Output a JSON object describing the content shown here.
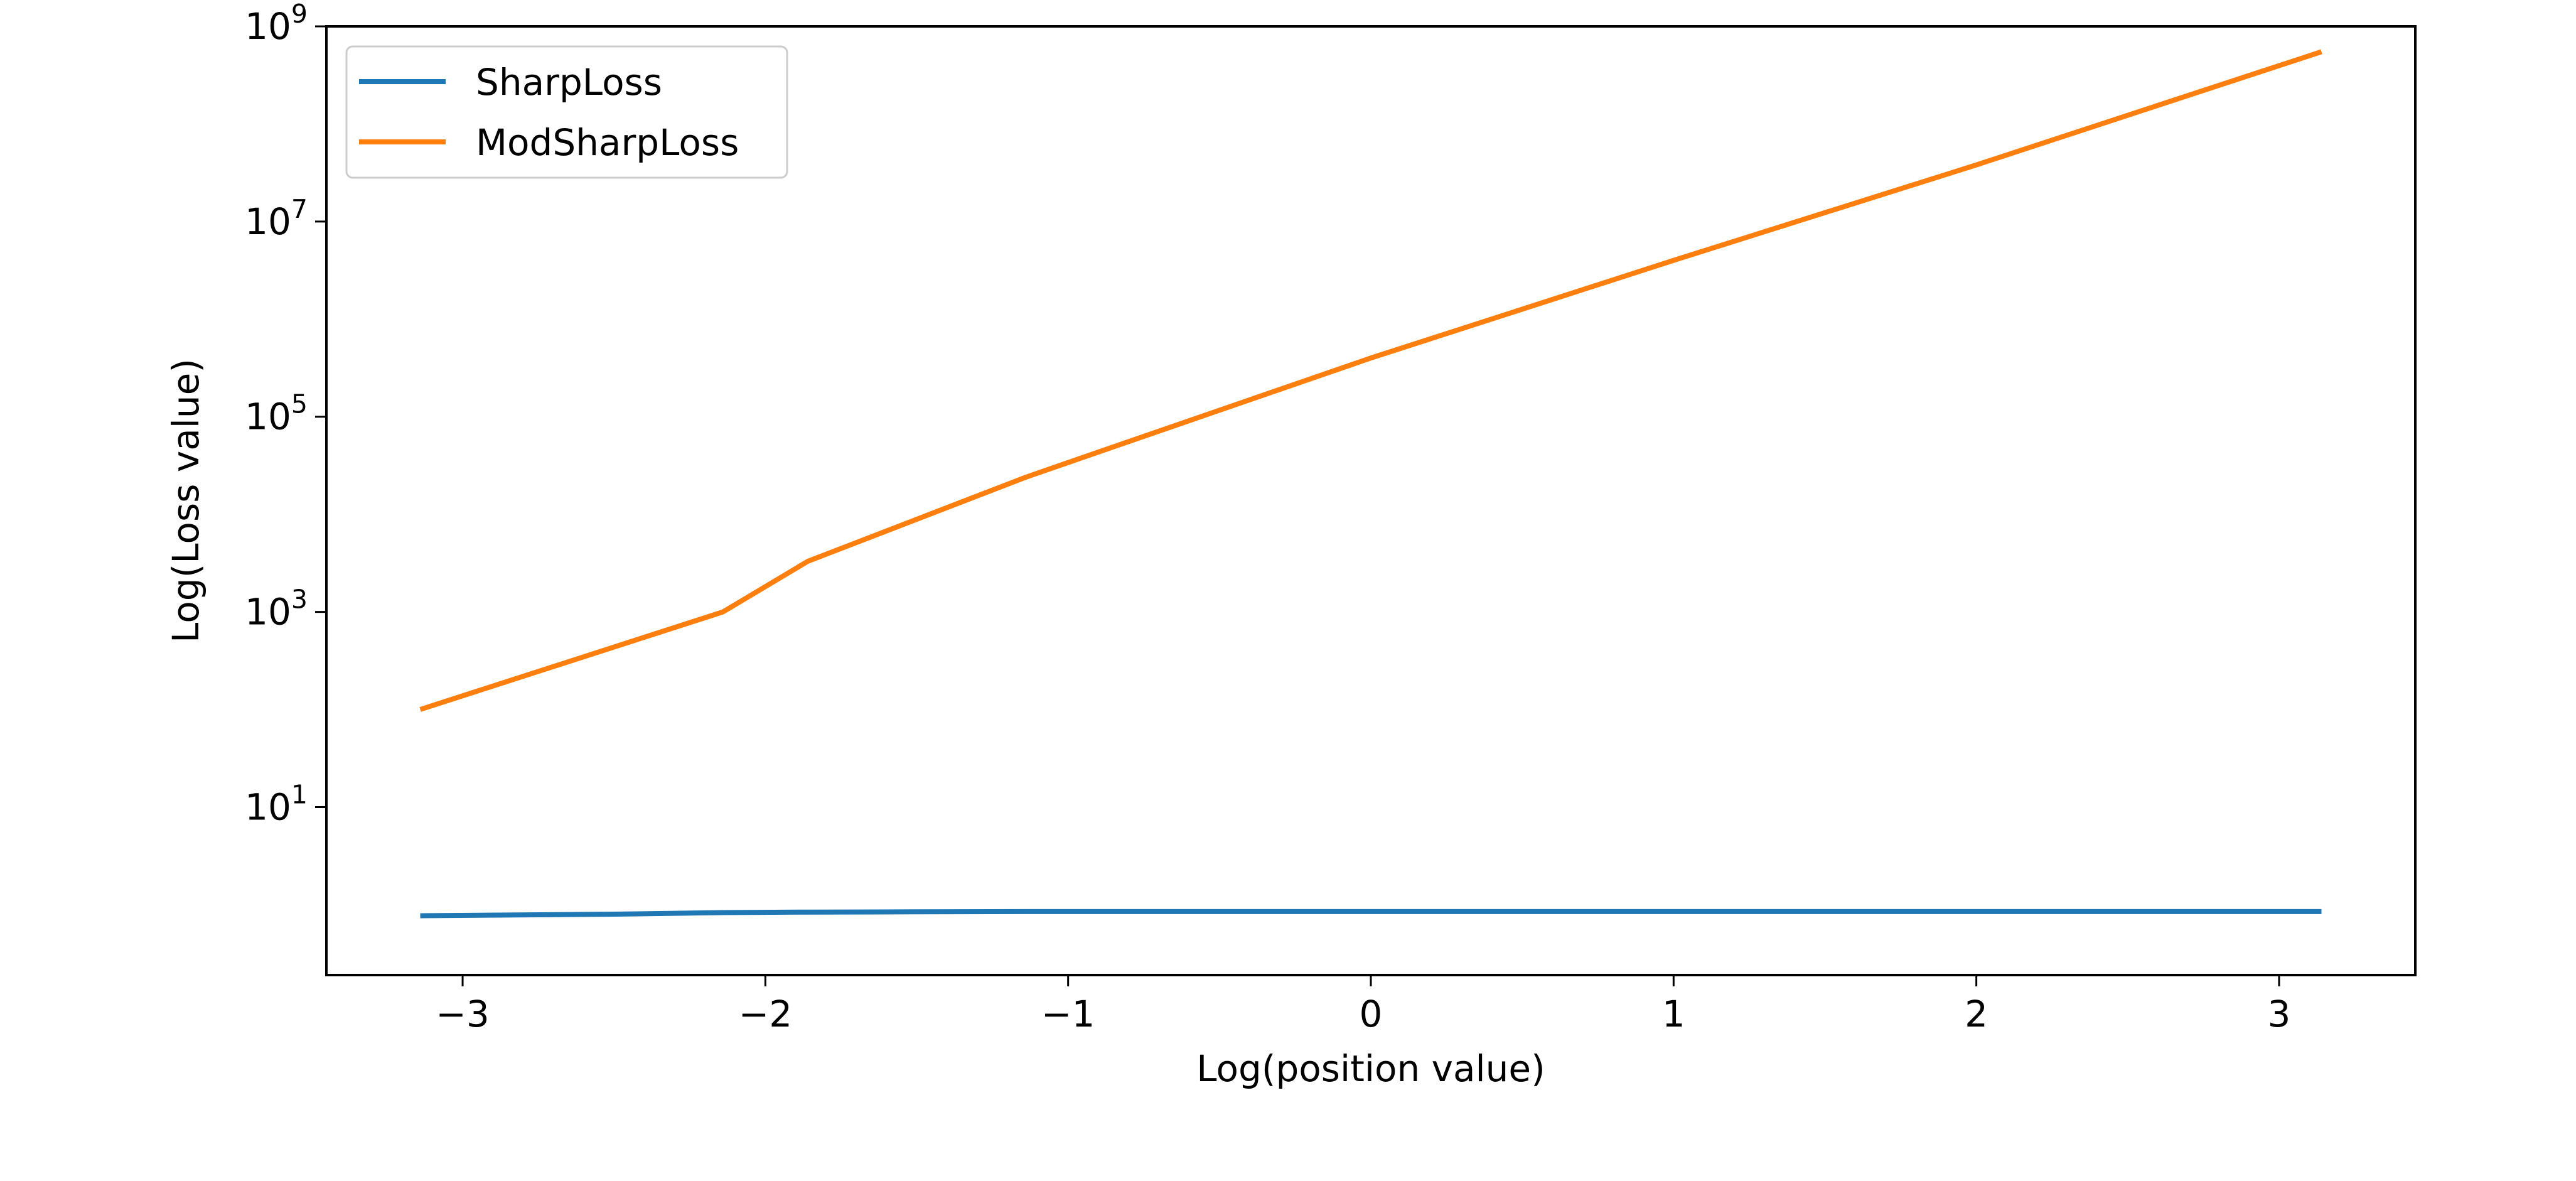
{
  "chart_data": {
    "type": "line",
    "title": "",
    "xlabel": "Log(position value)",
    "ylabel": "Log(Loss value)",
    "xlim": [
      -3.45,
      3.45
    ],
    "ylim": [
      0.19,
      1000000000
    ],
    "yscale": "log",
    "grid": false,
    "legend_position": "top-left",
    "x_ticks": [
      {
        "value": -3,
        "label": "−3"
      },
      {
        "value": -2,
        "label": "−2"
      },
      {
        "value": -1,
        "label": "−1"
      },
      {
        "value": 0,
        "label": "0"
      },
      {
        "value": 1,
        "label": "1"
      },
      {
        "value": 2,
        "label": "2"
      },
      {
        "value": 3,
        "label": "3"
      }
    ],
    "y_ticks": [
      {
        "value": 10,
        "base": "10",
        "exp": "1"
      },
      {
        "value": 1000,
        "base": "10",
        "exp": "3"
      },
      {
        "value": 100000,
        "base": "10",
        "exp": "5"
      },
      {
        "value": 10000000,
        "base": "10",
        "exp": "7"
      },
      {
        "value": 1000000000,
        "base": "10",
        "exp": "9"
      }
    ],
    "series": [
      {
        "name": "SharpLoss",
        "color": "#1f77b4",
        "x": [
          -3.14,
          -2.5,
          -2.14,
          -1.86,
          -1.5,
          -1.14,
          -0.86,
          0,
          1,
          2,
          3.14
        ],
        "y": [
          0.77,
          0.8,
          0.83,
          0.84,
          0.845,
          0.85,
          0.85,
          0.85,
          0.85,
          0.85,
          0.85
        ]
      },
      {
        "name": "ModSharpLoss",
        "color": "#ff7f0e",
        "x": [
          -3.14,
          -2.14,
          -1.86,
          -1.14,
          -0.86,
          0,
          1,
          2,
          3.14
        ],
        "y": [
          100,
          1000,
          3300,
          24000,
          48000,
          400000,
          4000000,
          38000000,
          550000000
        ]
      }
    ]
  }
}
